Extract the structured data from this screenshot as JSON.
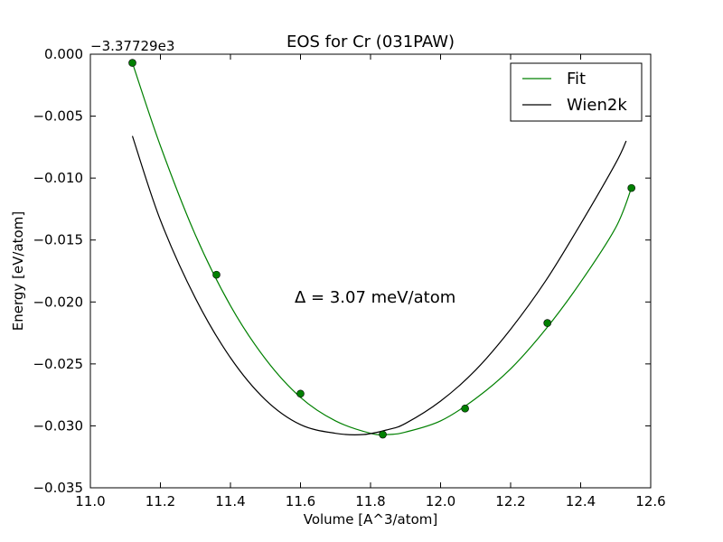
{
  "chart_data": {
    "type": "scatter",
    "title": "EOS for Cr (031PAW)",
    "xlabel": "Volume [A^3/atom]",
    "ylabel": "Energy [eV/atom]",
    "offset_text": "−3.37729e3",
    "xlim": [
      11.0,
      12.6
    ],
    "ylim": [
      -0.035,
      0.0
    ],
    "x_ticks": [
      11.0,
      11.2,
      11.4,
      11.6,
      11.8,
      12.0,
      12.2,
      12.4,
      12.6
    ],
    "x_tick_labels": [
      "11.0",
      "11.2",
      "11.4",
      "11.6",
      "11.8",
      "12.0",
      "12.2",
      "12.4",
      "12.6"
    ],
    "y_ticks": [
      0.0,
      -0.005,
      -0.01,
      -0.015,
      -0.02,
      -0.025,
      -0.03,
      -0.035
    ],
    "y_tick_labels": [
      "0.000",
      "−0.005",
      "−0.010",
      "−0.015",
      "−0.020",
      "−0.025",
      "−0.030",
      "−0.035"
    ],
    "grid": false,
    "legend": {
      "position": "top-right",
      "entries": [
        "Fit",
        "Wien2k"
      ]
    },
    "annotation": "Δ = 3.07 meV/atom",
    "colors": {
      "fit": "#008000",
      "wien2k": "#000000",
      "points": "#008000"
    },
    "points": {
      "x": [
        11.12,
        11.36,
        11.6,
        11.835,
        12.07,
        12.305,
        12.545
      ],
      "y": [
        -0.0007,
        -0.0178,
        -0.0274,
        -0.0307,
        -0.0286,
        -0.0217,
        -0.0108
      ]
    },
    "series": [
      {
        "name": "Fit",
        "x": [
          11.12,
          11.2,
          11.3,
          11.4,
          11.5,
          11.6,
          11.7,
          11.8,
          11.85,
          11.9,
          12.0,
          12.1,
          12.2,
          12.3,
          12.4,
          12.5,
          12.545
        ],
        "y": [
          -0.0007,
          -0.0074,
          -0.0146,
          -0.0203,
          -0.0246,
          -0.0277,
          -0.0296,
          -0.0306,
          -0.0307,
          -0.0305,
          -0.0296,
          -0.0278,
          -0.0254,
          -0.0222,
          -0.0184,
          -0.014,
          -0.0108
        ]
      },
      {
        "name": "Wien2k",
        "x": [
          11.12,
          11.2,
          11.3,
          11.4,
          11.5,
          11.6,
          11.7,
          11.78,
          11.85,
          11.9,
          12.0,
          12.1,
          12.2,
          12.3,
          12.4,
          12.5,
          12.53
        ],
        "y": [
          -0.0066,
          -0.0134,
          -0.0197,
          -0.0245,
          -0.0279,
          -0.0299,
          -0.0306,
          -0.0307,
          -0.0303,
          -0.0298,
          -0.028,
          -0.0255,
          -0.0222,
          -0.0183,
          -0.0137,
          -0.0088,
          -0.007
        ]
      }
    ]
  }
}
